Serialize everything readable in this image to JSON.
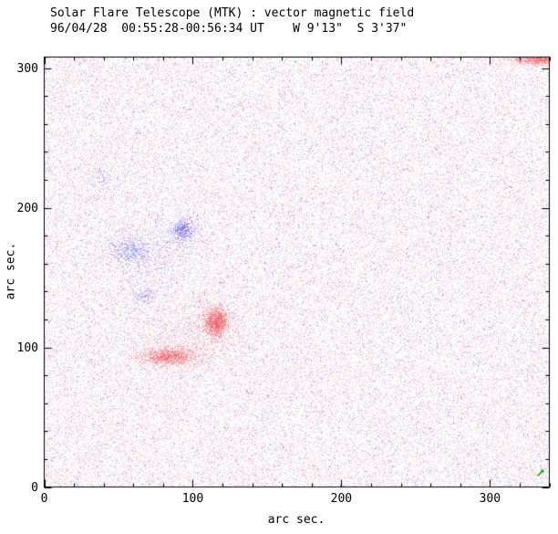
{
  "chart_data": {
    "type": "heatmap",
    "title": "Solar Flare Telescope (MTK) : vector magnetic field",
    "subtitle": "96/04/28  00:55:28-00:56:34 UT    W 9'13\"  S 3'37\"",
    "xlabel": "arc sec.",
    "ylabel": "arc sec.",
    "xlim": [
      0,
      340
    ],
    "ylim": [
      0,
      308
    ],
    "xticks": [
      0,
      100,
      200,
      300
    ],
    "yticks": [
      0,
      100,
      200,
      300
    ],
    "minor_tick_step": 20,
    "colors": {
      "positive": "#e05a5a",
      "negative": "#6666cc",
      "vector": "#00a000",
      "axis": "#000000",
      "background": "#ffffff"
    },
    "noise": {
      "seed": 960428,
      "base_red_prob": 0.21,
      "base_blue_prob": 0.17,
      "max_tint": 0.3
    },
    "features": [
      {
        "name": "blue-patch-main",
        "polarity": "negative",
        "x": 94,
        "y": 184,
        "rx": 7,
        "ry": 7,
        "intensity": 0.6
      },
      {
        "name": "blue-patch-west",
        "polarity": "negative",
        "x": 58,
        "y": 168,
        "rx": 12,
        "ry": 10,
        "intensity": 0.3
      },
      {
        "name": "blue-patch-small",
        "polarity": "negative",
        "x": 67,
        "y": 137,
        "rx": 6,
        "ry": 5,
        "intensity": 0.4
      },
      {
        "name": "blue-patch-faint",
        "polarity": "negative",
        "x": 38,
        "y": 220,
        "rx": 6,
        "ry": 8,
        "intensity": 0.18
      },
      {
        "name": "blue-halo",
        "polarity": "negative",
        "x": 78,
        "y": 168,
        "rx": 26,
        "ry": 20,
        "intensity": 0.1
      },
      {
        "name": "red-spot-main",
        "polarity": "positive",
        "x": 116,
        "y": 118,
        "rx": 8,
        "ry": 10,
        "intensity": 0.8
      },
      {
        "name": "red-ridge",
        "polarity": "positive",
        "x": 84,
        "y": 93,
        "rx": 18,
        "ry": 6,
        "intensity": 0.65
      },
      {
        "name": "red-haze",
        "polarity": "positive",
        "x": 100,
        "y": 108,
        "rx": 32,
        "ry": 20,
        "intensity": 0.1
      },
      {
        "name": "red-corner-top-right",
        "polarity": "positive",
        "x": 336,
        "y": 306,
        "rx": 20,
        "ry": 3.5,
        "intensity": 0.8
      }
    ],
    "vector_marks": [
      {
        "x": 334,
        "y": 10
      }
    ]
  }
}
